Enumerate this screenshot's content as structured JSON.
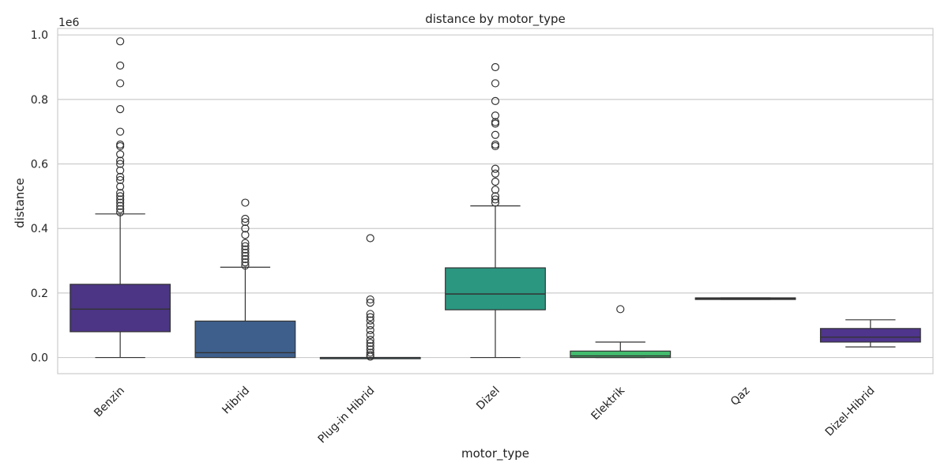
{
  "chart_data": {
    "type": "box",
    "title": "distance by motor_type",
    "xlabel": "motor_type",
    "ylabel": "distance",
    "y_offset_label": "1e6",
    "ylim": [
      -0.05,
      1.02
    ],
    "grid": true,
    "yticks": [
      0.0,
      0.2,
      0.4,
      0.6,
      0.8,
      1.0
    ],
    "ytick_labels": [
      "0.0",
      "0.2",
      "0.4",
      "0.6",
      "0.8",
      "1.0"
    ],
    "categories": [
      "Benzin",
      "Hibrid",
      "Plug-in Hibrid",
      "Dizel",
      "Elektrik",
      "Qaz",
      "Dizel-Hibrid"
    ],
    "boxes": [
      {
        "category": "Benzin",
        "color": "#4b3584",
        "whisker_low": 0.0,
        "q1": 0.08,
        "median": 0.15,
        "q3": 0.227,
        "whisker_high": 0.445,
        "outliers": [
          0.98,
          0.905,
          0.85,
          0.77,
          0.7,
          0.66,
          0.655,
          0.63,
          0.61,
          0.6,
          0.58,
          0.56,
          0.55,
          0.53,
          0.51,
          0.5,
          0.49,
          0.48,
          0.47,
          0.46,
          0.45
        ]
      },
      {
        "category": "Hibrid",
        "color": "#3e5f8c",
        "whisker_low": 0.0,
        "q1": 0.0,
        "median": 0.015,
        "q3": 0.113,
        "whisker_high": 0.28,
        "outliers": [
          0.48,
          0.43,
          0.42,
          0.4,
          0.38,
          0.355,
          0.345,
          0.335,
          0.325,
          0.315,
          0.305,
          0.295,
          0.285
        ]
      },
      {
        "category": "Plug-in Hibrid",
        "color": "#2f7f93",
        "whisker_low": 0.0,
        "q1": 0.0,
        "median": 0.0,
        "q3": 0.0,
        "whisker_high": 0.0,
        "outliers": [
          0.37,
          0.18,
          0.17,
          0.135,
          0.125,
          0.115,
          0.1,
          0.085,
          0.07,
          0.055,
          0.045,
          0.035,
          0.025,
          0.015,
          0.008,
          0.003
        ]
      },
      {
        "category": "Dizel",
        "color": "#2b9780",
        "whisker_low": 0.0,
        "q1": 0.148,
        "median": 0.197,
        "q3": 0.278,
        "whisker_high": 0.47,
        "outliers": [
          0.9,
          0.85,
          0.795,
          0.75,
          0.73,
          0.725,
          0.69,
          0.66,
          0.655,
          0.585,
          0.57,
          0.545,
          0.52,
          0.5,
          0.49,
          0.48
        ]
      },
      {
        "category": "Elektrik",
        "color": "#43bb6e",
        "whisker_low": 0.0,
        "q1": 0.0,
        "median": 0.005,
        "q3": 0.02,
        "whisker_high": 0.048,
        "outliers": [
          0.15
        ]
      },
      {
        "category": "Qaz",
        "color": "#3a8b8a",
        "whisker_low": 0.18,
        "q1": 0.18,
        "median": 0.182,
        "q3": 0.185,
        "whisker_high": 0.185,
        "outliers": []
      },
      {
        "category": "Dizel-Hibrid",
        "color": "#4f358c",
        "whisker_low": 0.033,
        "q1": 0.048,
        "median": 0.063,
        "q3": 0.09,
        "whisker_high": 0.117,
        "outliers": []
      }
    ]
  }
}
